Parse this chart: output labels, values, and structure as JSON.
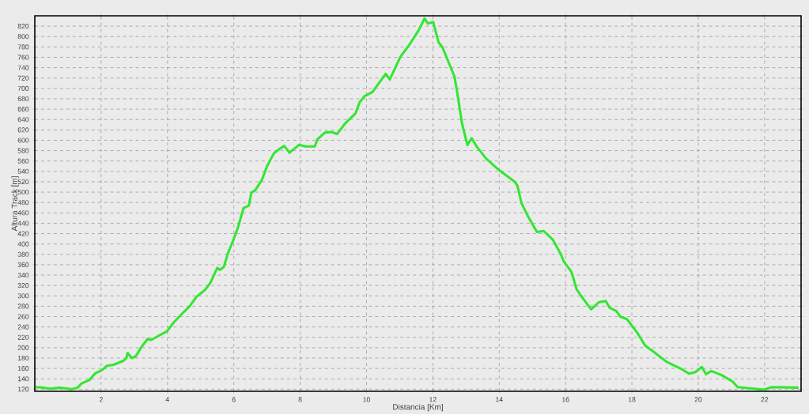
{
  "chart_data": {
    "type": "line",
    "xlabel": "Distancia [Km]",
    "ylabel": "Altura Track [m]",
    "xlim": [
      0,
      23.1
    ],
    "ylim": [
      116,
      840
    ],
    "xticks": [
      2,
      4,
      6,
      8,
      10,
      12,
      14,
      16,
      18,
      20,
      22
    ],
    "yticks": [
      120,
      140,
      160,
      180,
      200,
      220,
      240,
      260,
      280,
      300,
      320,
      340,
      360,
      380,
      400,
      420,
      440,
      460,
      480,
      500,
      520,
      540,
      560,
      580,
      600,
      620,
      640,
      660,
      680,
      700,
      720,
      740,
      760,
      780,
      800,
      820
    ],
    "grid": true,
    "marker": "none",
    "line_style": "solid",
    "x": [
      0.02,
      0.26,
      0.46,
      0.78,
      1.1,
      1.29,
      1.41,
      1.65,
      1.81,
      2.05,
      2.17,
      2.37,
      2.68,
      2.76,
      2.8,
      2.92,
      3.04,
      3.2,
      3.4,
      3.51,
      3.79,
      3.99,
      4.19,
      4.43,
      4.67,
      4.87,
      5.14,
      5.3,
      5.5,
      5.58,
      5.7,
      5.82,
      5.98,
      6.13,
      6.29,
      6.45,
      6.53,
      6.65,
      6.85,
      7.0,
      7.21,
      7.37,
      7.52,
      7.68,
      7.96,
      8.16,
      8.44,
      8.52,
      8.75,
      8.95,
      9.11,
      9.35,
      9.67,
      9.79,
      9.94,
      10.18,
      10.46,
      10.58,
      10.7,
      11.02,
      11.29,
      11.57,
      11.75,
      11.85,
      12.01,
      12.17,
      12.29,
      12.65,
      12.72,
      12.88,
      13.04,
      13.17,
      13.32,
      13.6,
      13.95,
      14.11,
      14.47,
      14.55,
      14.67,
      14.87,
      15.14,
      15.34,
      15.62,
      15.86,
      15.94,
      16.18,
      16.33,
      16.49,
      16.77,
      17.01,
      17.21,
      17.33,
      17.53,
      17.65,
      17.85,
      18.16,
      18.4,
      18.64,
      19.04,
      19.52,
      19.72,
      19.91,
      20.11,
      20.23,
      20.39,
      20.71,
      21.03,
      21.19,
      21.5,
      21.98,
      22.22,
      23.02
    ],
    "series": [
      {
        "color": "#33e633",
        "values": [
          124,
          123,
          121,
          123,
          120,
          123,
          131,
          138,
          150,
          158,
          165,
          167,
          175,
          180,
          190,
          180,
          183,
          200,
          217,
          215,
          225,
          232,
          249,
          265,
          280,
          298,
          312,
          326,
          354,
          350,
          356,
          382,
          407,
          433,
          469,
          474,
          499,
          504,
          524,
          550,
          575,
          583,
          589,
          576,
          591,
          588,
          588,
          602,
          615,
          616,
          612,
          632,
          652,
          673,
          685,
          693,
          718,
          728,
          717,
          761,
          784,
          812,
          835,
          825,
          828,
          789,
          779,
          723,
          698,
          632,
          591,
          604,
          588,
          565,
          545,
          537,
          520,
          512,
          479,
          453,
          423,
          425,
          408,
          380,
          367,
          346,
          313,
          298,
          274,
          288,
          290,
          277,
          271,
          260,
          255,
          229,
          204,
          193,
          173,
          158,
          150,
          153,
          163,
          149,
          155,
          147,
          135,
          124,
          122,
          119,
          124,
          123
        ]
      }
    ]
  }
}
